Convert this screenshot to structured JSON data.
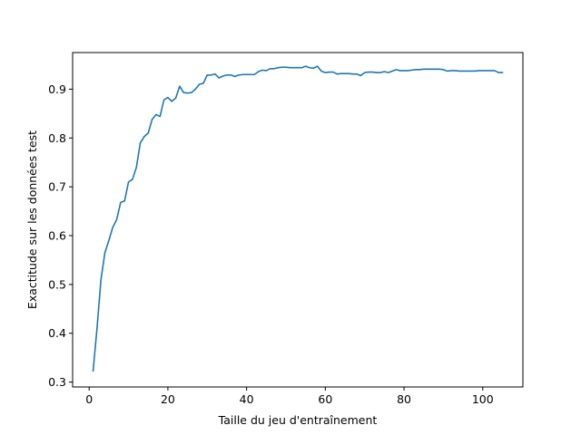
{
  "chart_data": {
    "type": "line",
    "title": "",
    "xlabel": "Taille du jeu d'entraînement",
    "ylabel": "Exactitude sur les données test",
    "xlim": [
      -4.2,
      110.2
    ],
    "ylim": [
      0.29,
      0.975
    ],
    "xticks": [
      0,
      20,
      40,
      60,
      80,
      100
    ],
    "yticks": [
      0.3,
      0.4,
      0.5,
      0.6,
      0.7,
      0.8,
      0.9
    ],
    "grid": false,
    "legend": "none",
    "series": [
      {
        "color": "#1f77b4",
        "x": [
          1,
          2,
          3,
          4,
          5,
          6,
          7,
          8,
          9,
          10,
          11,
          12,
          13,
          14,
          15,
          16,
          17,
          18,
          19,
          20,
          21,
          22,
          23,
          24,
          25,
          26,
          27,
          28,
          29,
          30,
          31,
          32,
          33,
          34,
          35,
          36,
          37,
          38,
          39,
          40,
          41,
          42,
          43,
          44,
          45,
          46,
          47,
          48,
          49,
          50,
          51,
          52,
          53,
          54,
          55,
          56,
          57,
          58,
          59,
          60,
          61,
          62,
          63,
          64,
          65,
          66,
          67,
          68,
          69,
          70,
          71,
          72,
          73,
          74,
          75,
          76,
          77,
          78,
          79,
          80,
          81,
          82,
          83,
          84,
          85,
          86,
          87,
          88,
          89,
          90,
          91,
          92,
          93,
          94,
          95,
          96,
          97,
          98,
          99,
          100,
          101,
          102,
          103,
          104,
          105
        ],
        "y": [
          0.323,
          0.41,
          0.51,
          0.565,
          0.59,
          0.617,
          0.633,
          0.668,
          0.671,
          0.71,
          0.715,
          0.74,
          0.79,
          0.803,
          0.81,
          0.838,
          0.848,
          0.844,
          0.878,
          0.883,
          0.875,
          0.882,
          0.906,
          0.893,
          0.892,
          0.893,
          0.9,
          0.91,
          0.912,
          0.929,
          0.929,
          0.931,
          0.923,
          0.927,
          0.929,
          0.929,
          0.926,
          0.929,
          0.93,
          0.93,
          0.93,
          0.93,
          0.936,
          0.939,
          0.938,
          0.942,
          0.942,
          0.944,
          0.945,
          0.945,
          0.944,
          0.944,
          0.944,
          0.944,
          0.947,
          0.944,
          0.943,
          0.947,
          0.937,
          0.934,
          0.935,
          0.935,
          0.931,
          0.932,
          0.932,
          0.932,
          0.931,
          0.931,
          0.928,
          0.934,
          0.935,
          0.935,
          0.934,
          0.934,
          0.936,
          0.934,
          0.937,
          0.94,
          0.938,
          0.938,
          0.938,
          0.939,
          0.94,
          0.94,
          0.941,
          0.941,
          0.941,
          0.941,
          0.941,
          0.94,
          0.937,
          0.938,
          0.938,
          0.937,
          0.937,
          0.937,
          0.937,
          0.937,
          0.938,
          0.938,
          0.938,
          0.938,
          0.938,
          0.934,
          0.934
        ]
      }
    ]
  }
}
